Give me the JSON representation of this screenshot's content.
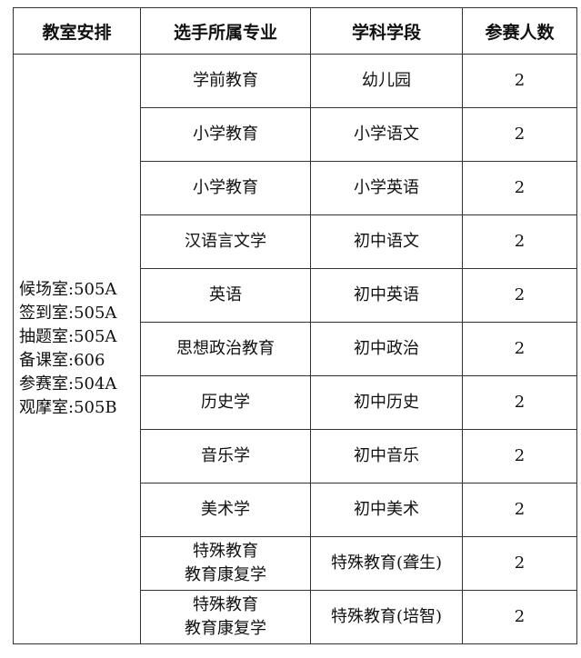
{
  "headers": [
    "教室安排",
    "选手所属专业",
    "学科学段",
    "参赛人数"
  ],
  "rooms": [
    "候场室:505A",
    "签到室:505A",
    "抽题室:505A",
    "备课室:606",
    "参赛室:504A",
    "观摩室:505B"
  ],
  "rows": [
    {
      "major": [
        "学前教育"
      ],
      "stage": "幼儿园",
      "count": "2"
    },
    {
      "major": [
        "小学教育"
      ],
      "stage": "小学语文",
      "count": "2"
    },
    {
      "major": [
        "小学教育"
      ],
      "stage": "小学英语",
      "count": "2"
    },
    {
      "major": [
        "汉语言文学"
      ],
      "stage": "初中语文",
      "count": "2"
    },
    {
      "major": [
        "英语"
      ],
      "stage": "初中英语",
      "count": "2"
    },
    {
      "major": [
        "思想政治教育"
      ],
      "stage": "初中政治",
      "count": "2"
    },
    {
      "major": [
        "历史学"
      ],
      "stage": "初中历史",
      "count": "2"
    },
    {
      "major": [
        "音乐学"
      ],
      "stage": "初中音乐",
      "count": "2"
    },
    {
      "major": [
        "美术学"
      ],
      "stage": "初中美术",
      "count": "2"
    },
    {
      "major": [
        "特殊教育",
        "教育康复学"
      ],
      "stage": "特殊教育(聋生)",
      "count": "2"
    },
    {
      "major": [
        "特殊教育",
        "教育康复学"
      ],
      "stage": "特殊教育(培智)",
      "count": "2"
    }
  ]
}
